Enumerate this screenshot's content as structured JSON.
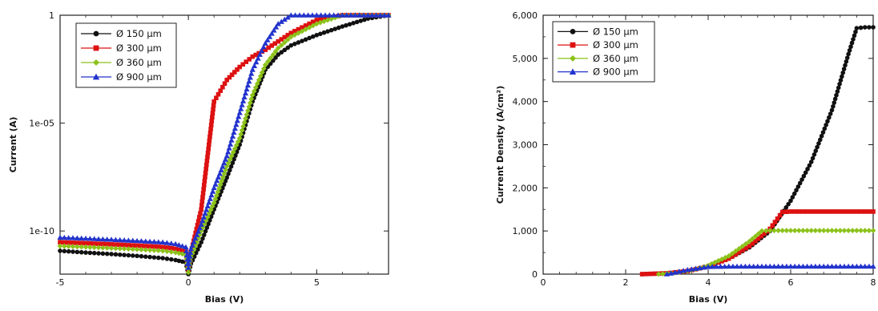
{
  "chart_data": [
    {
      "type": "line",
      "title": "",
      "xlabel": "Bias (V)",
      "ylabel": "Current (A)",
      "yscale": "log",
      "xlim": [
        -5,
        7.8
      ],
      "ylim": [
        1e-12,
        1
      ],
      "xticks": [
        -5,
        0,
        5
      ],
      "xtick_labels": [
        "-5",
        "0",
        "5"
      ],
      "yticks": [
        1e-10,
        1e-05,
        1
      ],
      "ytick_labels": [
        "1e-10",
        "1e-05",
        "1"
      ],
      "grid": false,
      "legend": "top-left",
      "series": [
        {
          "name": "Ø 150 µm",
          "color": "#111111",
          "marker": "circle",
          "x": [
            -5,
            -4,
            -3,
            -2,
            -1,
            -0.5,
            -0.1,
            0,
            0.1,
            0.5,
            1,
            1.5,
            2,
            2.5,
            3,
            3.5,
            4,
            5,
            6,
            7,
            7.8
          ],
          "y": [
            1.2e-11,
            1e-11,
            8.5e-12,
            7e-12,
            5.5e-12,
            4.5e-12,
            3.5e-12,
            1e-12,
            3e-12,
            3e-11,
            1e-09,
            3e-08,
            1e-06,
            0.0001,
            0.003,
            0.015,
            0.04,
            0.12,
            0.3,
            0.7,
            1
          ]
        },
        {
          "name": "Ø 300 µm",
          "color": "#dd1111",
          "marker": "square",
          "x": [
            -5,
            -4,
            -3,
            -2,
            -1,
            -0.5,
            -0.1,
            0,
            0.1,
            0.5,
            0.8,
            1,
            1.5,
            2,
            2.5,
            3,
            4,
            5,
            6,
            7,
            7.8
          ],
          "y": [
            3e-11,
            2.7e-11,
            2.4e-11,
            2.1e-11,
            1.8e-11,
            1.5e-11,
            1.1e-11,
            1.5e-12,
            1e-11,
            1e-09,
            1e-06,
            0.0001,
            0.001,
            0.004,
            0.012,
            0.025,
            0.15,
            0.6,
            1,
            1,
            1
          ]
        },
        {
          "name": "Ø 360 µm",
          "color": "#8cc21a",
          "marker": "diamond",
          "x": [
            -5,
            -4,
            -3,
            -2,
            -1,
            -0.5,
            -0.1,
            0,
            0.1,
            0.5,
            1,
            1.5,
            2,
            2.5,
            3,
            3.5,
            4,
            5,
            6,
            7,
            7.8
          ],
          "y": [
            2e-11,
            1.8e-11,
            1.6e-11,
            1.4e-11,
            1.2e-11,
            1e-11,
            8e-12,
            1.2e-12,
            6e-12,
            1e-10,
            2e-09,
            1e-07,
            2e-06,
            0.0002,
            0.005,
            0.03,
            0.1,
            0.4,
            1,
            1,
            1
          ]
        },
        {
          "name": "Ø 900 µm",
          "color": "#2233cc",
          "marker": "triangle",
          "x": [
            -5,
            -4,
            -3,
            -2,
            -1,
            -0.5,
            -0.1,
            0,
            0.1,
            0.5,
            1,
            1.5,
            2,
            2.5,
            3,
            3.5,
            4,
            5,
            6,
            7,
            7.8
          ],
          "y": [
            5e-11,
            4.5e-11,
            4e-11,
            3.5e-11,
            3e-11,
            2.5e-11,
            1.8e-11,
            2e-12,
            1.5e-11,
            2e-10,
            1e-08,
            3e-07,
            3e-05,
            0.003,
            0.05,
            0.4,
            1,
            1,
            1,
            1,
            1
          ]
        }
      ]
    },
    {
      "type": "line",
      "title": "",
      "xlabel": "Bias (V)",
      "ylabel": "Current Density (A/cm²)",
      "xlim": [
        0,
        8
      ],
      "ylim": [
        0,
        6000
      ],
      "xticks": [
        0,
        2,
        4,
        6,
        8
      ],
      "xtick_labels": [
        "0",
        "2",
        "4",
        "6",
        "8"
      ],
      "yticks": [
        0,
        1000,
        2000,
        3000,
        4000,
        5000,
        6000
      ],
      "ytick_labels": [
        "0",
        "1,000",
        "2,000",
        "3,000",
        "4,000",
        "5,000",
        "6,000"
      ],
      "grid": false,
      "legend": "top-left",
      "series": [
        {
          "name": "Ø 150 µm",
          "color": "#111111",
          "marker": "circle",
          "x": [
            2.4,
            3,
            3.5,
            4,
            4.5,
            5,
            5.5,
            6,
            6.5,
            7,
            7.4,
            7.6,
            7.8,
            8
          ],
          "y": [
            0,
            20,
            70,
            180,
            360,
            620,
            1000,
            1700,
            2600,
            3800,
            5100,
            5700,
            5720,
            5720
          ]
        },
        {
          "name": "Ø 300 µm",
          "color": "#dd1111",
          "marker": "square",
          "x": [
            2.4,
            3,
            3.5,
            4,
            4.5,
            5,
            5.5,
            5.8,
            6,
            7,
            8
          ],
          "y": [
            0,
            20,
            70,
            180,
            360,
            650,
            1050,
            1440,
            1450,
            1450,
            1450
          ]
        },
        {
          "name": "Ø 360 µm",
          "color": "#8cc21a",
          "marker": "diamond",
          "x": [
            2.8,
            3.2,
            3.6,
            4,
            4.5,
            5,
            5.3,
            5.5,
            6,
            7,
            8
          ],
          "y": [
            0,
            30,
            90,
            200,
            420,
            760,
            1000,
            1010,
            1010,
            1010,
            1010
          ]
        },
        {
          "name": "Ø 900 µm",
          "color": "#2233cc",
          "marker": "triangle",
          "x": [
            3,
            3.5,
            4,
            4.5,
            5,
            6,
            7,
            8
          ],
          "y": [
            0,
            100,
            170,
            180,
            180,
            180,
            180,
            180
          ]
        }
      ]
    }
  ]
}
